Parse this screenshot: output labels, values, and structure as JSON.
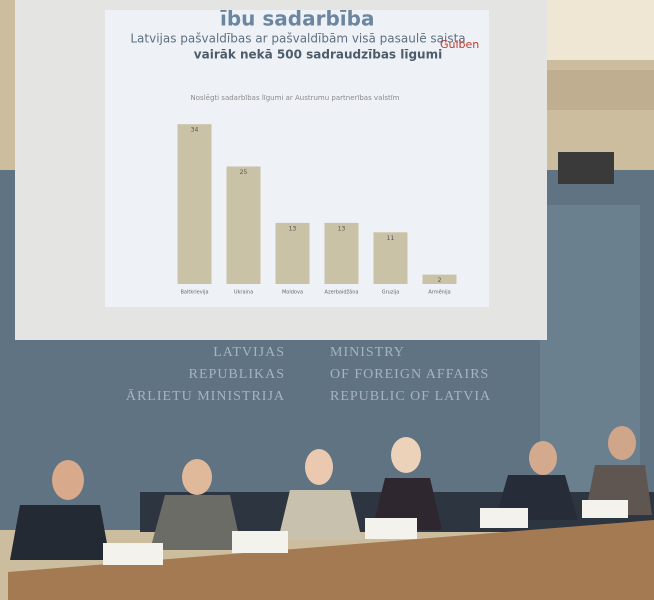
{
  "slide": {
    "heading": "ību sadarbība",
    "line1": "Latvijas pašvaldības ar pašvaldībām visā pasaulē saista",
    "line2": "vairāk nekā 500 sadraudzības līgumi",
    "logo": "Gulben"
  },
  "chart_data": {
    "type": "bar",
    "title": "Noslēgti sadarbības līgumi ar Austrumu partnerības valstīm",
    "categories": [
      "Baltkrievija",
      "Ukraina",
      "Moldova",
      "Azerbaidžāna",
      "Gruzija",
      "Armēnija"
    ],
    "values": [
      34,
      25,
      13,
      13,
      11,
      2
    ],
    "color": "#c9c2a6"
  },
  "wall_sign": {
    "latvian": [
      "LATVIJAS",
      "REPUBLIKAS",
      "ĀRLIETU MINISTRIJA"
    ],
    "english": [
      "MINISTRY",
      "OF FOREIGN AFFAIRS",
      "REPUBLIC OF LATVIA"
    ]
  }
}
